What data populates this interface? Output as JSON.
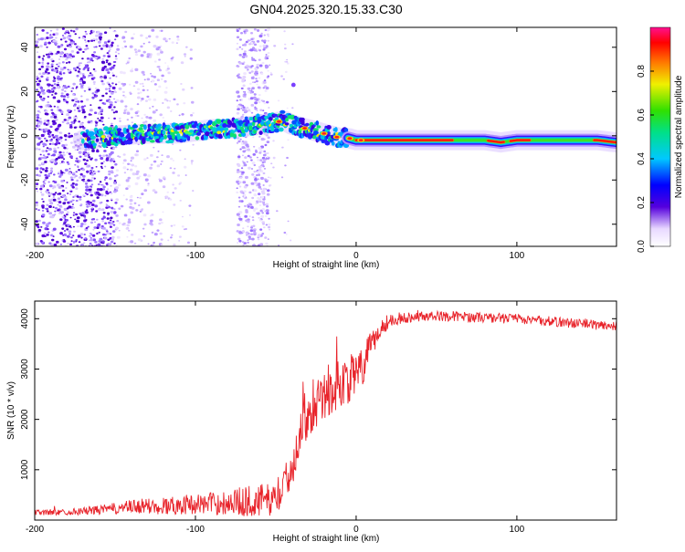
{
  "figure_title": "GN04.2025.320.15.33.C30",
  "colors": {
    "snr_line": "#e8232a",
    "spectrogram_base": "#5500dd",
    "axis": "#000000"
  },
  "chart_data": [
    {
      "type": "heatmap",
      "title": "GN04.2025.320.15.33.C30",
      "xlabel": "Height of straight line (km)",
      "ylabel": "Frequency (Hz)",
      "xlim": [
        -200,
        162
      ],
      "ylim": [
        -50,
        49
      ],
      "x_ticks": [
        "-200",
        "-100",
        "0",
        "100"
      ],
      "y_ticks": [
        "-40",
        "-20",
        "0",
        "20",
        "40"
      ],
      "grid": false,
      "colorbar": {
        "label": "Normalized spectral amplitude",
        "range": [
          0,
          1
        ],
        "ticks": [
          "0.0",
          "0.2",
          "0.4",
          "0.6",
          "0.8"
        ],
        "colormap": "rainbow"
      },
      "ridge": {
        "description": "frequency centroid of dominant signal vs height",
        "x": [
          -170,
          -150,
          -130,
          -110,
          -100,
          -90,
          -80,
          -70,
          -60,
          -50,
          -45,
          -40,
          -35,
          -30,
          -25,
          -20,
          -15,
          -10,
          -5,
          0,
          10,
          30,
          60,
          80,
          90,
          100,
          110,
          130,
          150,
          162
        ],
        "y": [
          -2,
          0,
          1,
          1,
          2,
          3,
          3,
          4,
          5,
          6,
          7,
          5,
          4,
          3,
          2,
          1,
          0,
          -1,
          -1,
          -2,
          -2,
          -2,
          -2,
          -2,
          -3,
          -2,
          -2,
          -2,
          -2,
          -3
        ]
      },
      "regions": [
        {
          "name": "noise band (wide scatter)",
          "x_range": [
            -200,
            -150
          ],
          "y_range": [
            -50,
            49
          ]
        },
        {
          "name": "noise band (sparse scatter)",
          "x_range": [
            -150,
            -100
          ],
          "y_range": [
            -50,
            49
          ]
        },
        {
          "name": "noise band (stripe)",
          "x_range": [
            -75,
            -55
          ],
          "y_range": [
            -50,
            49
          ]
        }
      ]
    },
    {
      "type": "line",
      "xlabel": "Height of straight line (km)",
      "ylabel": "SNR (10 * v/v)",
      "xlim": [
        -200,
        162
      ],
      "ylim": [
        0,
        4350
      ],
      "x_ticks": [
        "-200",
        "-100",
        "0",
        "100"
      ],
      "y_ticks": [
        "1000",
        "2000",
        "3000",
        "4000"
      ],
      "grid": false,
      "series": [
        {
          "name": "SNR",
          "envelope_x": [
            -200,
            -180,
            -160,
            -140,
            -120,
            -100,
            -90,
            -80,
            -70,
            -60,
            -50,
            -45,
            -40,
            -35,
            -30,
            -25,
            -20,
            -15,
            -10,
            -5,
            0,
            5,
            10,
            15,
            20,
            25,
            30,
            40,
            50,
            60,
            80,
            100,
            120,
            140,
            162
          ],
          "envelope_mean": [
            150,
            160,
            200,
            260,
            280,
            320,
            330,
            350,
            370,
            380,
            420,
            650,
            1100,
            1700,
            2200,
            2400,
            2500,
            2600,
            2700,
            2800,
            2850,
            3100,
            3500,
            3800,
            3950,
            4000,
            4020,
            4050,
            4050,
            4050,
            4020,
            4000,
            3950,
            3900,
            3850
          ],
          "noise_amplitude": [
            60,
            60,
            90,
            140,
            180,
            200,
            220,
            260,
            300,
            350,
            300,
            350,
            450,
            500,
            550,
            550,
            550,
            550,
            500,
            500,
            450,
            400,
            300,
            200,
            150,
            120,
            110,
            100,
            100,
            100,
            100,
            100,
            100,
            100,
            100
          ]
        }
      ]
    }
  ]
}
